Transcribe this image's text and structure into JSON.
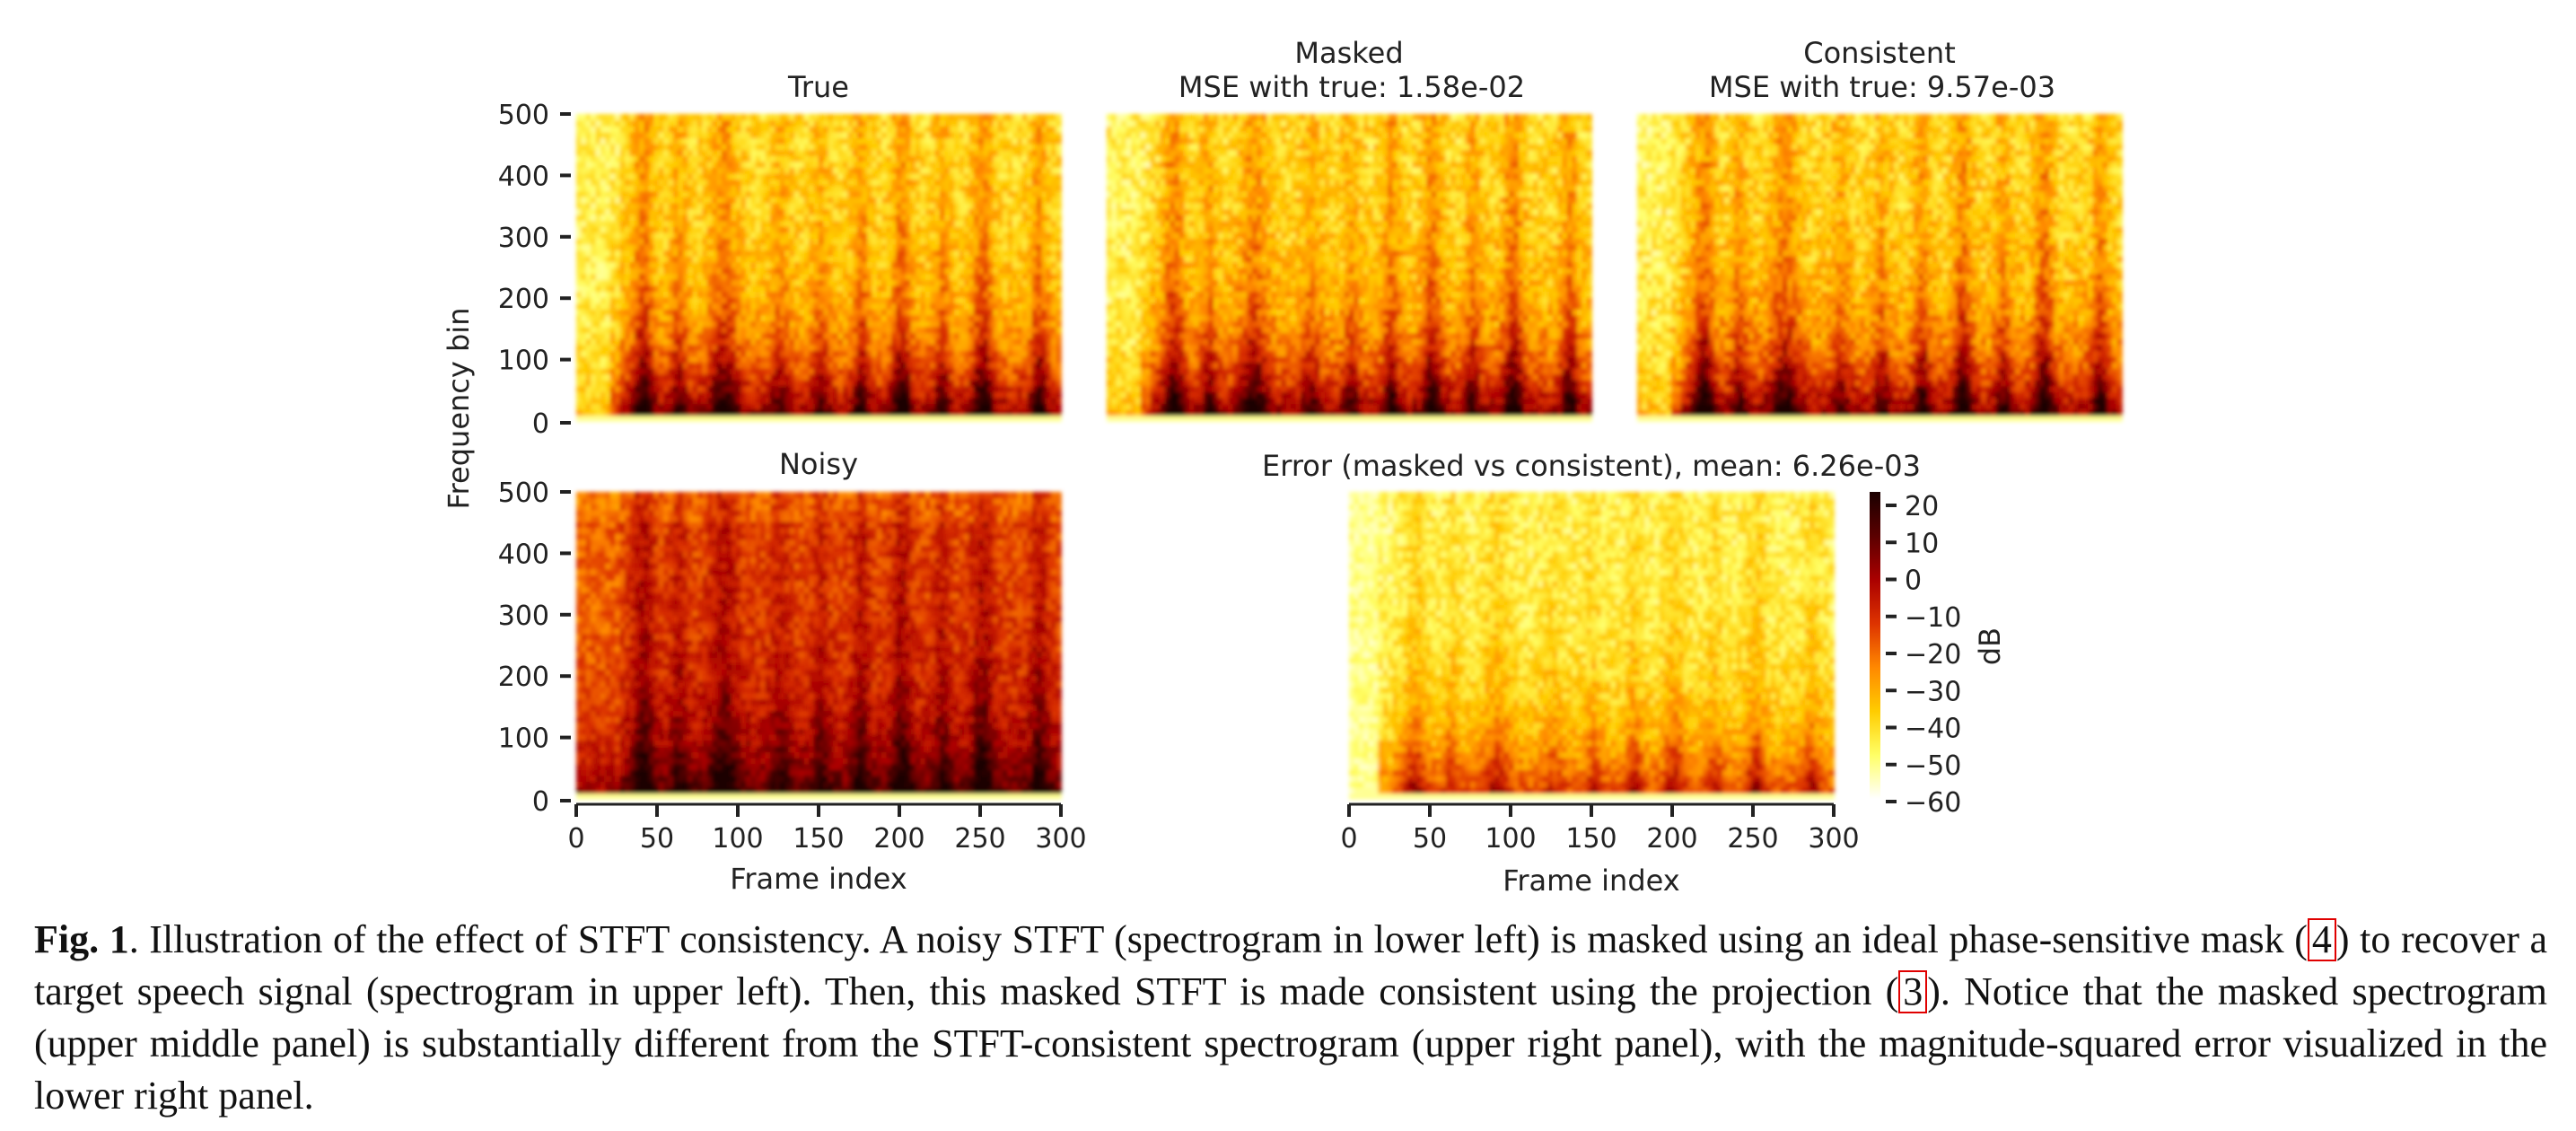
{
  "figure": {
    "panels": {
      "true": {
        "title": "True"
      },
      "masked": {
        "title_line1": "Masked",
        "title_line2": "MSE with true: 1.58e-02"
      },
      "consistent": {
        "title_line1": "Consistent",
        "title_line2": "MSE with true: 9.57e-03"
      },
      "noisy": {
        "title": "Noisy"
      },
      "error": {
        "title": "Error (masked vs consistent), mean: 6.26e-03"
      }
    },
    "ylabel": "Frequency bin",
    "xlabel": "Frame index",
    "y_ticks": [
      "0",
      "100",
      "200",
      "300",
      "400",
      "500"
    ],
    "x_ticks": [
      "0",
      "50",
      "100",
      "150",
      "200",
      "250",
      "300"
    ],
    "colorbar": {
      "label": "dB",
      "ticks": [
        "20",
        "10",
        "0",
        "−10",
        "−20",
        "−30",
        "−40",
        "−50",
        "−60"
      ],
      "colormap": "hot_r",
      "colors": [
        "#ffffff",
        "#ffff66",
        "#ffcc00",
        "#ff8800",
        "#dd3300",
        "#aa0000",
        "#5a0000",
        "#1a0000"
      ]
    }
  },
  "chart_data": [
    {
      "type": "heatmap",
      "title": "True",
      "ylabel": "Frequency bin",
      "x_range": [
        0,
        300
      ],
      "y_range": [
        0,
        512
      ],
      "colorbar_range_dB": [
        -60,
        20
      ]
    },
    {
      "type": "heatmap",
      "title": "Masked\nMSE with true: 1.58e-02",
      "x_range": [
        0,
        300
      ],
      "y_range": [
        0,
        512
      ],
      "mse_with_true": 0.0158
    },
    {
      "type": "heatmap",
      "title": "Consistent\nMSE with true: 9.57e-03",
      "x_range": [
        0,
        300
      ],
      "y_range": [
        0,
        512
      ],
      "mse_with_true": 0.00957
    },
    {
      "type": "heatmap",
      "title": "Noisy",
      "xlabel": "Frame index",
      "ylabel": "Frequency bin",
      "x_range": [
        0,
        300
      ],
      "y_range": [
        0,
        512
      ]
    },
    {
      "type": "heatmap",
      "title": "Error (masked vs consistent), mean: 6.26e-03",
      "xlabel": "Frame index",
      "x_range": [
        0,
        300
      ],
      "y_range": [
        0,
        512
      ],
      "mean_error": 0.00626,
      "colorbar_label": "dB",
      "colorbar_range_dB": [
        -60,
        20
      ]
    }
  ],
  "caption": {
    "label": "Fig. 1",
    "part1": ". Illustration of the effect of STFT consistency. A noisy STFT (spectrogram in lower left) is masked using an ideal phase-sensitive mask (",
    "ref1": "4",
    "part2": ") to recover a target speech signal (spectrogram in upper left). Then, this masked STFT is made consistent using the projection (",
    "ref2": "3",
    "part3": "). Notice that the masked spectrogram (upper middle panel) is substantially different from the STFT-consistent spectrogram (upper right panel), with the magnitude-squared error visualized in the lower right panel."
  }
}
